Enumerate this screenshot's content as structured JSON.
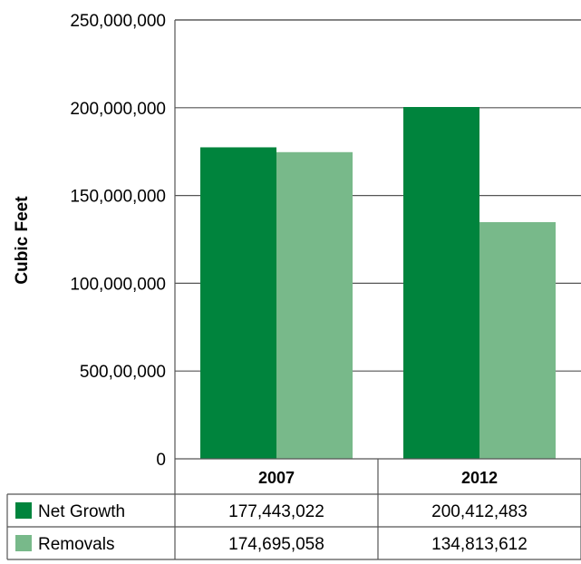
{
  "chart_data": {
    "type": "bar",
    "ylabel": "Cubic Feet",
    "ylim": [
      0,
      250000000
    ],
    "y_ticks": [
      {
        "value": 0,
        "label": "0"
      },
      {
        "value": 50000000,
        "label": "500,00,000"
      },
      {
        "value": 100000000,
        "label": "100,000,000"
      },
      {
        "value": 150000000,
        "label": "150,000,000"
      },
      {
        "value": 200000000,
        "label": "200,000,000"
      },
      {
        "value": 250000000,
        "label": "250,000,000"
      }
    ],
    "grid": true,
    "categories": [
      "2007",
      "2012"
    ],
    "series": [
      {
        "name": "Net Growth",
        "color": "#00843d",
        "values": [
          177443022,
          200412483
        ],
        "value_labels": [
          "177,443,022",
          "200,412,483"
        ]
      },
      {
        "name": "Removals",
        "color": "#78b98a",
        "values": [
          174695058,
          134813612
        ],
        "value_labels": [
          "174,695,058",
          "134,813,612"
        ]
      }
    ],
    "legend": "data-table-below"
  }
}
